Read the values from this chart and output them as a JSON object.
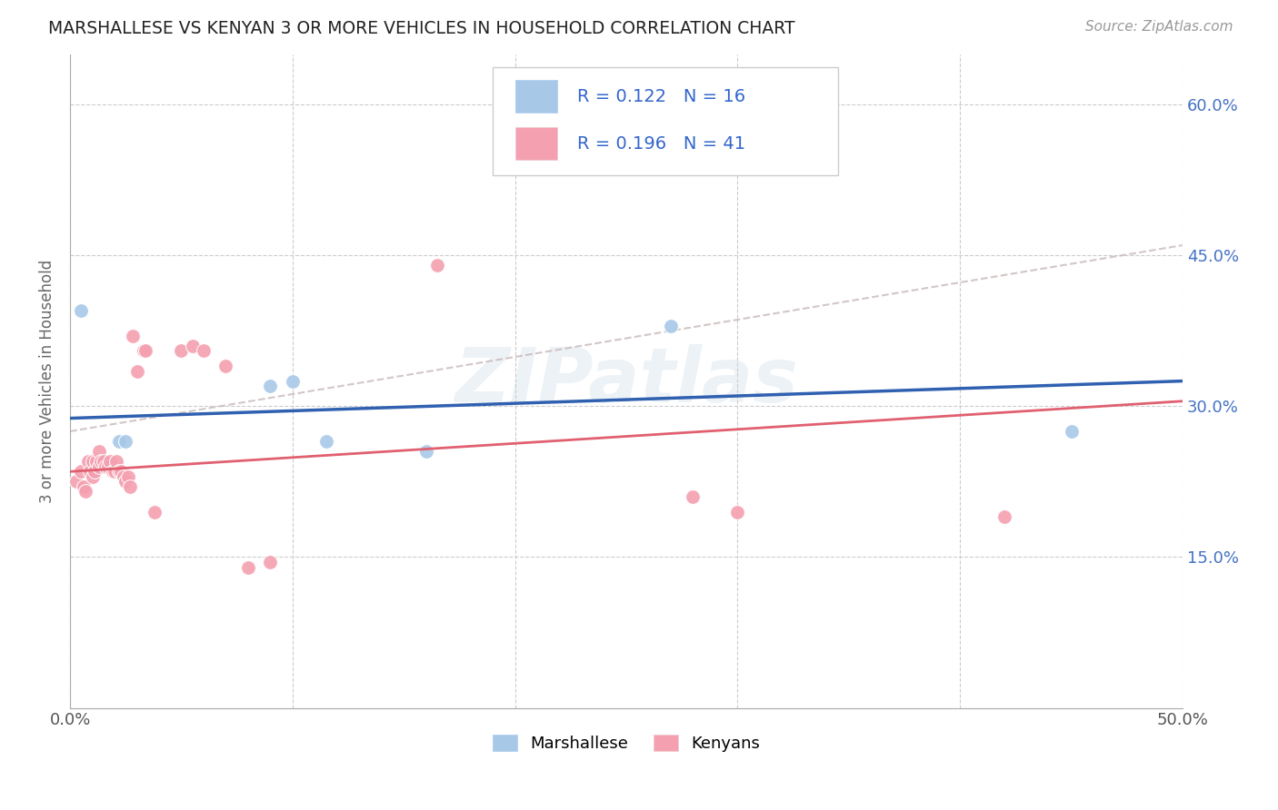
{
  "title": "MARSHALLESE VS KENYAN 3 OR MORE VEHICLES IN HOUSEHOLD CORRELATION CHART",
  "source": "Source: ZipAtlas.com",
  "ylabel": "3 or more Vehicles in Household",
  "xlim": [
    0.0,
    0.5
  ],
  "ylim": [
    0.0,
    0.65
  ],
  "watermark": "ZIPatlas",
  "blue_color": "#a8c8e8",
  "pink_color": "#f4a0b0",
  "blue_line_color": "#3060b0",
  "pink_line_color": "#e06070",
  "dash_line_color": "#c8b8b8",
  "background_color": "#ffffff",
  "grid_color": "#cccccc",
  "title_color": "#333333",
  "right_tick_color": "#4472c4",
  "blue_scatter_x": [
    0.005,
    0.022,
    0.025,
    0.09,
    0.1,
    0.115,
    0.16,
    0.27,
    0.45
  ],
  "blue_scatter_y": [
    0.395,
    0.265,
    0.265,
    0.32,
    0.325,
    0.265,
    0.255,
    0.38,
    0.275
  ],
  "pink_scatter_x": [
    0.003,
    0.005,
    0.006,
    0.007,
    0.008,
    0.009,
    0.01,
    0.01,
    0.011,
    0.012,
    0.013,
    0.013,
    0.014,
    0.015,
    0.016,
    0.017,
    0.018,
    0.019,
    0.02,
    0.021,
    0.022,
    0.023,
    0.024,
    0.025,
    0.026,
    0.027,
    0.028,
    0.03,
    0.033,
    0.034,
    0.038,
    0.05,
    0.055,
    0.06,
    0.07,
    0.08,
    0.09,
    0.165,
    0.28,
    0.3,
    0.42
  ],
  "pink_scatter_y": [
    0.225,
    0.235,
    0.22,
    0.215,
    0.245,
    0.235,
    0.23,
    0.245,
    0.235,
    0.245,
    0.24,
    0.255,
    0.245,
    0.245,
    0.24,
    0.24,
    0.245,
    0.235,
    0.235,
    0.245,
    0.235,
    0.235,
    0.23,
    0.225,
    0.23,
    0.22,
    0.37,
    0.335,
    0.355,
    0.355,
    0.195,
    0.355,
    0.36,
    0.355,
    0.34,
    0.14,
    0.145,
    0.44,
    0.21,
    0.195,
    0.19
  ],
  "blue_line_x0": 0.0,
  "blue_line_y0": 0.288,
  "blue_line_x1": 0.5,
  "blue_line_y1": 0.325,
  "pink_line_x0": 0.0,
  "pink_line_y0": 0.235,
  "pink_line_x1": 0.5,
  "pink_line_y1": 0.305,
  "dash_line_x0": 0.0,
  "dash_line_y0": 0.275,
  "dash_line_x1": 0.5,
  "dash_line_y1": 0.46
}
